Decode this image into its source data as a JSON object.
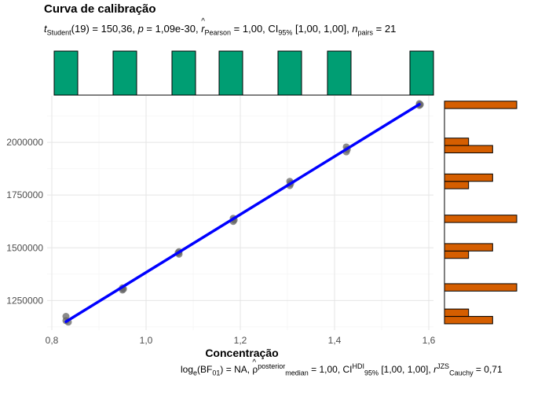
{
  "chart_data": {
    "type": "scatter",
    "title": "Curva de calibração",
    "subtitle_parts": {
      "t_name": "t",
      "t_sub": "Student",
      "t_rest": "(19) = 150,36, ",
      "p_name": "p",
      "p_rest": " = 1,09e-30, ",
      "r_name": "r",
      "r_sub": "Pearson",
      "r_rest": " = 1,00, CI",
      "ci_sub": "95%",
      "ci_rest": " [1,00, 1,00], ",
      "n_name": "n",
      "n_sub": "pairs",
      "n_rest": " = 21"
    },
    "caption_parts": {
      "a": "log",
      "a_sub": "e",
      "b": "(BF",
      "b_sub": "01",
      "c": ") = NA, ",
      "rho": "ρ",
      "rho_sup": "posterior",
      "rho_sub": "median",
      "d": " = 1,00, CI",
      "ci_sup": "HDI",
      "ci_sub": "95%",
      "e": " [1,00, 1,00], ",
      "r": "r",
      "r_sup": "JZS",
      "r_sub": "Cauchy",
      "f": " = 0,71"
    },
    "xlabel": "Concentração",
    "ylabel": "",
    "xlim": [
      0.79,
      1.61
    ],
    "ylim": [
      1110000,
      2220000
    ],
    "x_ticks": [
      0.8,
      1.0,
      1.2,
      1.4,
      1.6
    ],
    "x_tick_labels": [
      "0,8",
      "1,0",
      "1,2",
      "1,4",
      "1,6"
    ],
    "y_ticks": [
      1250000,
      1500000,
      1750000,
      2000000
    ],
    "y_tick_labels": [
      "1250000",
      "1500000",
      "1750000",
      "2000000"
    ],
    "grid": true,
    "points": [
      {
        "x": 0.83,
        "y": 1175000
      },
      {
        "x": 0.83,
        "y": 1155000
      },
      {
        "x": 0.835,
        "y": 1148000
      },
      {
        "x": 0.95,
        "y": 1300000
      },
      {
        "x": 0.95,
        "y": 1310000
      },
      {
        "x": 0.952,
        "y": 1305000
      },
      {
        "x": 1.07,
        "y": 1470000
      },
      {
        "x": 1.07,
        "y": 1482000
      },
      {
        "x": 1.068,
        "y": 1476000
      },
      {
        "x": 1.185,
        "y": 1625000
      },
      {
        "x": 1.185,
        "y": 1640000
      },
      {
        "x": 1.187,
        "y": 1632000
      },
      {
        "x": 1.305,
        "y": 1795000
      },
      {
        "x": 1.305,
        "y": 1815000
      },
      {
        "x": 1.307,
        "y": 1805000
      },
      {
        "x": 1.425,
        "y": 1955000
      },
      {
        "x": 1.425,
        "y": 1978000
      },
      {
        "x": 1.427,
        "y": 1966000
      },
      {
        "x": 1.58,
        "y": 2175000
      },
      {
        "x": 1.58,
        "y": 2183000
      },
      {
        "x": 1.582,
        "y": 2179000
      }
    ],
    "fit_line": {
      "x": [
        0.83,
        1.58
      ],
      "y": [
        1150000,
        2180000
      ]
    },
    "colors": {
      "points": "#666666",
      "fit": "#0000ff",
      "top_hist": "#009e73",
      "right_hist": "#d55e00"
    },
    "top_histogram": {
      "bins": [
        [
          0.805,
          0.855
        ],
        [
          0.93,
          0.98
        ],
        [
          1.055,
          1.105
        ],
        [
          1.155,
          1.205
        ],
        [
          1.28,
          1.33
        ],
        [
          1.385,
          1.435
        ],
        [
          1.56,
          1.61
        ]
      ],
      "counts": [
        3,
        3,
        3,
        3,
        3,
        3,
        3
      ]
    },
    "right_histogram": {
      "bins": [
        [
          1140000,
          1175000
        ],
        [
          1175000,
          1210000
        ],
        [
          1295000,
          1330000
        ],
        [
          1450000,
          1485000
        ],
        [
          1485000,
          1520000
        ],
        [
          1620000,
          1655000
        ],
        [
          1780000,
          1815000
        ],
        [
          1815000,
          1850000
        ],
        [
          1950000,
          1985000
        ],
        [
          1985000,
          2020000
        ],
        [
          2160000,
          2195000
        ]
      ],
      "counts": [
        2,
        1,
        3,
        1,
        2,
        3,
        1,
        2,
        2,
        1,
        3
      ]
    }
  }
}
